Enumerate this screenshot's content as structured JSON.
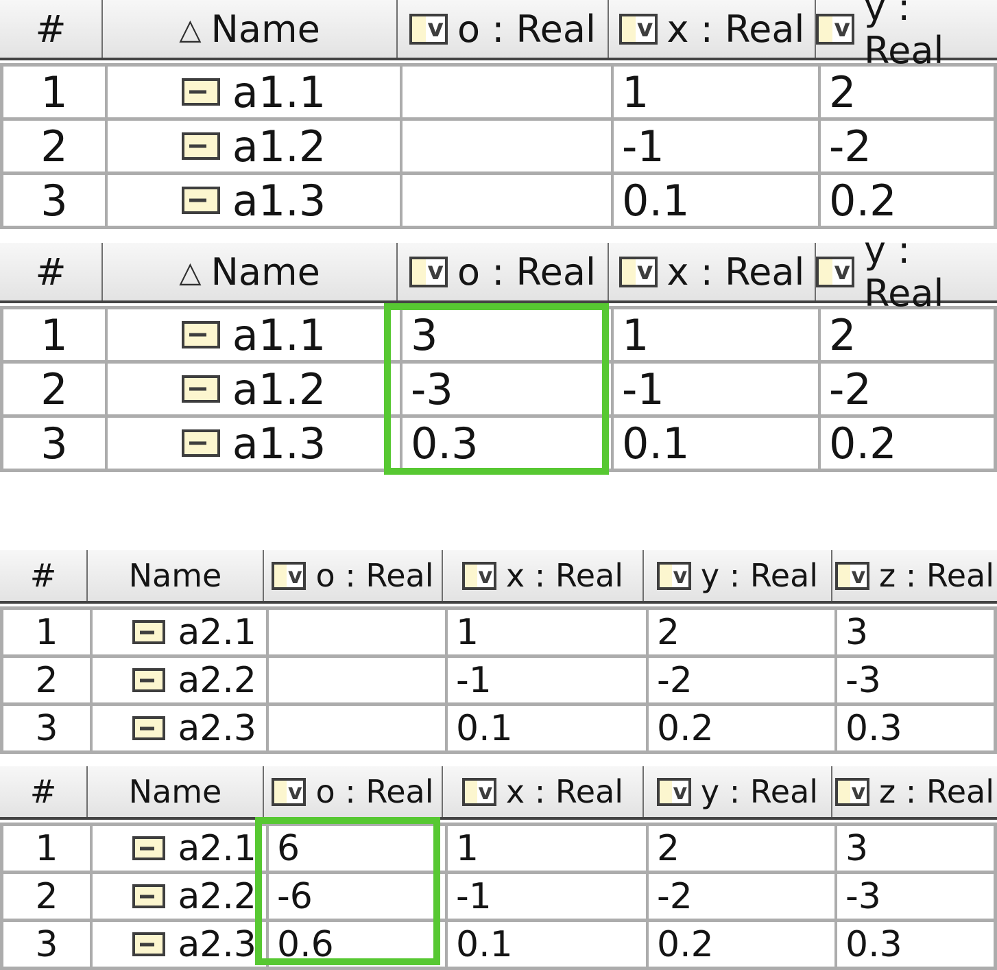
{
  "sort_icon": "△",
  "icon_v": "v",
  "colors": {
    "highlight_green": "#57c832",
    "icon_fill": "#fcf6cf",
    "icon_border": "#3e3e3e",
    "grid_gray": "#acacac",
    "header_underline": "#434343"
  },
  "t1": {
    "headers": {
      "num": "#",
      "name": "Name",
      "o": "o : Real",
      "x": "x : Real",
      "y": "y : Real"
    },
    "rows": [
      {
        "num": "1",
        "name": "a1.1",
        "o": "",
        "x": "1",
        "y": "2"
      },
      {
        "num": "2",
        "name": "a1.2",
        "o": "",
        "x": "-1",
        "y": "-2"
      },
      {
        "num": "3",
        "name": "a1.3",
        "o": "",
        "x": "0.1",
        "y": "0.2"
      }
    ]
  },
  "t2": {
    "headers": {
      "num": "#",
      "name": "Name",
      "o": "o : Real",
      "x": "x : Real",
      "y": "y : Real"
    },
    "rows": [
      {
        "num": "1",
        "name": "a1.1",
        "o": "3",
        "x": "1",
        "y": "2"
      },
      {
        "num": "2",
        "name": "a1.2",
        "o": "-3",
        "x": "-1",
        "y": "-2"
      },
      {
        "num": "3",
        "name": "a1.3",
        "o": "0.3",
        "x": "0.1",
        "y": "0.2"
      }
    ]
  },
  "t3": {
    "headers": {
      "num": "#",
      "name": "Name",
      "o": "o : Real",
      "x": "x : Real",
      "y": "y : Real",
      "z": "z : Real"
    },
    "rows": [
      {
        "num": "1",
        "name": "a2.1",
        "o": "",
        "x": "1",
        "y": "2",
        "z": "3"
      },
      {
        "num": "2",
        "name": "a2.2",
        "o": "",
        "x": "-1",
        "y": "-2",
        "z": "-3"
      },
      {
        "num": "3",
        "name": "a2.3",
        "o": "",
        "x": "0.1",
        "y": "0.2",
        "z": "0.3"
      }
    ]
  },
  "t4": {
    "headers": {
      "num": "#",
      "name": "Name",
      "o": "o : Real",
      "x": "x : Real",
      "y": "y : Real",
      "z": "z : Real"
    },
    "rows": [
      {
        "num": "1",
        "name": "a2.1",
        "o": "6",
        "x": "1",
        "y": "2",
        "z": "3"
      },
      {
        "num": "2",
        "name": "a2.2",
        "o": "-6",
        "x": "-1",
        "y": "-2",
        "z": "-3"
      },
      {
        "num": "3",
        "name": "a2.3",
        "o": "0.6",
        "x": "0.1",
        "y": "0.2",
        "z": "0.3"
      }
    ]
  }
}
